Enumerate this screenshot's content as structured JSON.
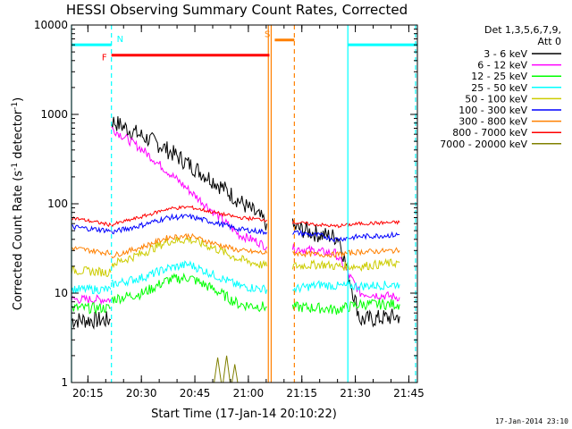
{
  "chart_data": {
    "type": "line",
    "title": "HESSI Observing Summary Count Rates, Corrected",
    "xlabel": "Start Time (17-Jan-14 20:10:22)",
    "ylabel_main": "Corrected Count Rate (s",
    "ylabel_exp1": "-1",
    "ylabel_mid": " detector",
    "ylabel_exp2": "-1",
    "ylabel_end": ")",
    "x_units": "minutes after 20:10:22",
    "xlim": [
      0,
      97
    ],
    "ylim": [
      1,
      10000
    ],
    "y_scale": "log",
    "x_ticks": [
      {
        "t": 4.6,
        "label": "20:15"
      },
      {
        "t": 19.6,
        "label": "20:30"
      },
      {
        "t": 34.6,
        "label": "20:45"
      },
      {
        "t": 49.6,
        "label": "21:00"
      },
      {
        "t": 64.6,
        "label": "21:15"
      },
      {
        "t": 79.6,
        "label": "21:30"
      },
      {
        "t": 94.6,
        "label": "21:45"
      }
    ],
    "y_ticks": [
      {
        "v": 1,
        "label": "1"
      },
      {
        "v": 10,
        "label": "10"
      },
      {
        "v": 100,
        "label": "100"
      },
      {
        "v": 1000,
        "label": "1000"
      },
      {
        "v": 10000,
        "label": "10000"
      }
    ],
    "legend_title_1": "Det 1,3,5,6,7,9,",
    "legend_title_2": "Att 0",
    "legend_placement": "right, outside plot",
    "series": [
      {
        "name": "3 - 6 keV",
        "color": "#000000",
        "noise": 0.1,
        "segments": [
          [
            [
              0,
              5.0
            ],
            [
              11,
              5.0
            ]
          ],
          [
            [
              11.2,
              850
            ],
            [
              25,
              450
            ],
            [
              40,
              180
            ],
            [
              52,
              75
            ],
            [
              54.8,
              60
            ]
          ],
          [
            [
              62,
              55
            ],
            [
              70,
              45
            ],
            [
              75,
              42
            ],
            [
              81,
              5.0
            ],
            [
              92,
              5.5
            ]
          ]
        ]
      },
      {
        "name": "6 - 12 keV",
        "color": "#ff00ff",
        "noise": 0.05,
        "segments": [
          [
            [
              0,
              8.5
            ],
            [
              11,
              8.5
            ]
          ],
          [
            [
              11.2,
              700
            ],
            [
              20,
              400
            ],
            [
              30,
              180
            ],
            [
              40,
              80
            ],
            [
              47,
              45
            ],
            [
              52,
              38
            ],
            [
              54.8,
              33
            ]
          ],
          [
            [
              62,
              32
            ],
            [
              70,
              29
            ],
            [
              74,
              28
            ],
            [
              81,
              10
            ],
            [
              92,
              9
            ]
          ]
        ]
      },
      {
        "name": "12 - 25 keV",
        "color": "#00ff00",
        "noise": 0.06,
        "segments": [
          [
            [
              0,
              6.8
            ],
            [
              11,
              6.8
            ]
          ],
          [
            [
              11.2,
              8.5
            ],
            [
              20,
              10
            ],
            [
              27,
              14
            ],
            [
              33,
              15
            ],
            [
              40,
              11
            ],
            [
              47,
              7.5
            ],
            [
              54.8,
              7
            ]
          ],
          [
            [
              62,
              7
            ],
            [
              70,
              6.8
            ],
            [
              74,
              6.5
            ],
            [
              81,
              7.5
            ],
            [
              92,
              7.5
            ]
          ]
        ]
      },
      {
        "name": "25 - 50 keV",
        "color": "#00ffff",
        "noise": 0.05,
        "segments": [
          [
            [
              0,
              11
            ],
            [
              11,
              11
            ]
          ],
          [
            [
              11.2,
              12.5
            ],
            [
              20,
              15
            ],
            [
              27,
              19
            ],
            [
              33,
              21
            ],
            [
              40,
              16
            ],
            [
              47,
              12
            ],
            [
              54.8,
              11
            ]
          ],
          [
            [
              62,
              11
            ],
            [
              70,
              12.5
            ],
            [
              74,
              12
            ],
            [
              81,
              12
            ],
            [
              92,
              12.5
            ]
          ]
        ]
      },
      {
        "name": "50 - 100 keV",
        "color": "#cccc00",
        "noise": 0.05,
        "segments": [
          [
            [
              0,
              18
            ],
            [
              11,
              17
            ]
          ],
          [
            [
              11.2,
              21
            ],
            [
              20,
              28
            ],
            [
              27,
              38
            ],
            [
              33,
              40
            ],
            [
              40,
              32
            ],
            [
              47,
              24
            ],
            [
              54.8,
              20
            ]
          ],
          [
            [
              62,
              20
            ],
            [
              70,
              21
            ],
            [
              74,
              20
            ],
            [
              81,
              20
            ],
            [
              92,
              22
            ]
          ]
        ]
      },
      {
        "name": "100 - 300 keV",
        "color": "#0000ff",
        "noise": 0.03,
        "segments": [
          [
            [
              0,
              55
            ],
            [
              11,
              50
            ]
          ],
          [
            [
              11.2,
              48
            ],
            [
              20,
              58
            ],
            [
              27,
              70
            ],
            [
              33,
              72
            ],
            [
              40,
              62
            ],
            [
              47,
              52
            ],
            [
              54.8,
              48
            ]
          ],
          [
            [
              62,
              48
            ],
            [
              70,
              44
            ],
            [
              74,
              40
            ],
            [
              81,
              43
            ],
            [
              92,
              45
            ]
          ]
        ]
      },
      {
        "name": "300 - 800 keV",
        "color": "#ff8000",
        "noise": 0.03,
        "segments": [
          [
            [
              0,
              32
            ],
            [
              11,
              28
            ]
          ],
          [
            [
              11.2,
              26
            ],
            [
              20,
              33
            ],
            [
              27,
              42
            ],
            [
              33,
              44
            ],
            [
              40,
              36
            ],
            [
              47,
              30
            ],
            [
              54.8,
              28
            ]
          ],
          [
            [
              62,
              28
            ],
            [
              70,
              27
            ],
            [
              74,
              27
            ],
            [
              81,
              29
            ],
            [
              92,
              30
            ]
          ]
        ]
      },
      {
        "name": "800 - 7000 keV",
        "color": "#ff0000",
        "noise": 0.02,
        "segments": [
          [
            [
              0,
              70
            ],
            [
              11,
              58
            ]
          ],
          [
            [
              11.2,
              58
            ],
            [
              20,
              72
            ],
            [
              27,
              88
            ],
            [
              33,
              92
            ],
            [
              40,
              80
            ],
            [
              47,
              70
            ],
            [
              54.8,
              66
            ]
          ],
          [
            [
              62,
              62
            ],
            [
              70,
              58
            ],
            [
              74,
              56
            ],
            [
              81,
              60
            ],
            [
              92,
              62
            ]
          ]
        ]
      },
      {
        "name": "7000 - 20000 keV",
        "color": "#808000",
        "noise": 0.0,
        "segments": [
          [
            [
              40,
              1.0
            ],
            [
              41,
              1.9
            ],
            [
              42,
              1.0
            ]
          ],
          [
            [
              42.5,
              1.0
            ],
            [
              43.5,
              2.0
            ],
            [
              44.5,
              1.0
            ]
          ],
          [
            [
              45,
              1.0
            ],
            [
              45.8,
              1.6
            ],
            [
              46.6,
              1.0
            ]
          ]
        ]
      }
    ],
    "flags": [
      {
        "label": "",
        "color": "#00ffff",
        "y": 6000,
        "t0": 0,
        "t1": 11.2
      },
      {
        "label": "N",
        "color": "#00ffff",
        "y": 6000,
        "t0": 11.2,
        "t1": 11.2
      },
      {
        "label": "F",
        "color": "#ff0000",
        "y": 4600,
        "t0": 11.2,
        "t1": 55.5
      },
      {
        "label": "S",
        "color": "#ff8000",
        "y": 6800,
        "t0": 57.0,
        "t1": 62.5
      },
      {
        "label": "",
        "color": "#00ffff",
        "y": 6000,
        "t0": 77.5,
        "t1": 97
      }
    ],
    "vlines": [
      {
        "t": 0.0,
        "color": "#00ffff",
        "style": "solid"
      },
      {
        "t": 11.2,
        "color": "#00ffff",
        "style": "dashed"
      },
      {
        "t": 55.2,
        "color": "#ff8000",
        "style": "solid"
      },
      {
        "t": 56.0,
        "color": "#ff8000",
        "style": "solid"
      },
      {
        "t": 62.5,
        "color": "#ff8000",
        "style": "dashed"
      },
      {
        "t": 77.5,
        "color": "#00ffff",
        "style": "solid"
      },
      {
        "t": 96.5,
        "color": "#00ffff",
        "style": "dashed"
      }
    ]
  },
  "footer_timestamp": "17-Jan-2014 23:10"
}
